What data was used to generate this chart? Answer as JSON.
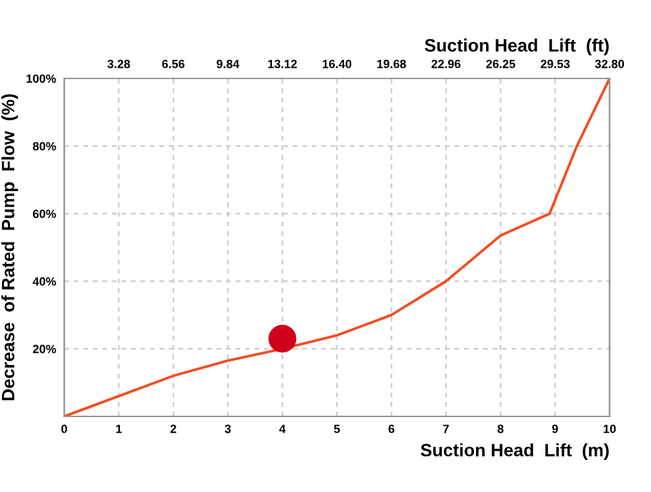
{
  "chart_data": {
    "type": "line",
    "xlabel": "Suction Head  Lift  (m)",
    "x2label": "Suction Head  Lift  (ft)",
    "ylabel": "Decrease  of Rated  Pump  Flow  (%)",
    "series": [
      {
        "marker": "none",
        "color": "#f04e23",
        "x": [
          0,
          1,
          2,
          3,
          4,
          5,
          6,
          7,
          8,
          8.9,
          9.4,
          10
        ],
        "values": [
          0,
          6,
          12,
          16.5,
          20,
          24,
          30,
          40,
          53.5,
          60,
          80,
          100
        ]
      },
      {
        "type": "scatter",
        "marker": "circle",
        "color": "#d0021b",
        "x": [
          4
        ],
        "values": [
          23
        ]
      }
    ],
    "xlim": [
      0,
      10
    ],
    "xticks": [
      0,
      1,
      2,
      3,
      4,
      5,
      6,
      7,
      8,
      9,
      10
    ],
    "x2lim": [
      0,
      32.8
    ],
    "x2ticks": [
      {
        "value": 3.28,
        "label": "3.28"
      },
      {
        "value": 6.56,
        "label": "6.56"
      },
      {
        "value": 9.84,
        "label": "9.84"
      },
      {
        "value": 13.12,
        "label": "13.12"
      },
      {
        "value": 16.4,
        "label": "16.40"
      },
      {
        "value": 19.68,
        "label": "19.68"
      },
      {
        "value": 22.96,
        "label": "22.96"
      },
      {
        "value": 26.25,
        "label": "26.25"
      },
      {
        "value": 29.53,
        "label": "29.53"
      },
      {
        "value": 32.8,
        "label": "32.80"
      }
    ],
    "ylim": [
      0,
      100
    ],
    "yticks": [
      {
        "value": 20,
        "label": "20%"
      },
      {
        "value": 40,
        "label": "40%"
      },
      {
        "value": 60,
        "label": "60%"
      },
      {
        "value": 80,
        "label": "80%"
      },
      {
        "value": 100,
        "label": "100%"
      }
    ],
    "grid": true,
    "line_style": "solid",
    "legend": false
  }
}
